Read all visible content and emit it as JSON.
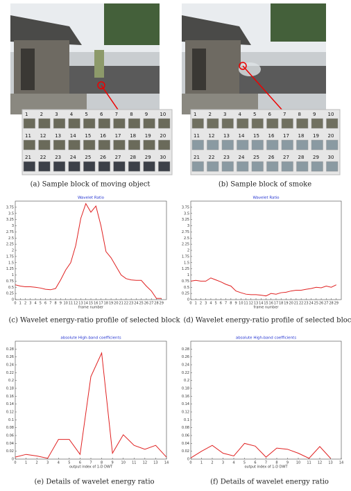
{
  "photos": [
    {
      "caption": "(a) Sample block of moving object",
      "blocks": [
        1,
        2,
        3,
        4,
        5,
        6,
        7,
        8,
        9,
        10,
        11,
        12,
        13,
        14,
        15,
        16,
        17,
        18,
        19,
        20,
        21,
        22,
        23,
        24,
        25,
        26,
        27,
        28,
        29,
        30
      ]
    },
    {
      "caption": "(b) Sample block of smoke",
      "blocks": [
        1,
        2,
        3,
        4,
        5,
        6,
        7,
        8,
        9,
        10,
        11,
        12,
        13,
        14,
        15,
        16,
        17,
        18,
        19,
        20,
        21,
        22,
        23,
        24,
        25,
        26,
        27,
        28,
        29,
        30
      ]
    }
  ],
  "chart_data": [
    {
      "type": "line",
      "title": "Wavelet Ratio",
      "xlabel": "frame number",
      "caption": "(c) Wavelet energy-ratio profile of selected block",
      "color": "#e02020",
      "x": [
        0,
        1,
        2,
        3,
        4,
        5,
        6,
        7,
        8,
        9,
        10,
        11,
        12,
        13,
        14,
        15,
        16,
        17,
        18,
        19,
        20,
        21,
        22,
        23,
        24,
        25,
        26,
        27,
        28,
        29
      ],
      "values": [
        0.6,
        0.55,
        0.52,
        0.52,
        0.5,
        0.47,
        0.42,
        0.4,
        0.45,
        0.8,
        1.2,
        1.5,
        2.2,
        3.3,
        3.9,
        3.55,
        3.8,
        3.0,
        1.95,
        1.7,
        1.35,
        1.0,
        0.85,
        0.8,
        0.78,
        0.78,
        0.55,
        0.35,
        0.05,
        0.05
      ],
      "xlim": [
        0,
        30
      ],
      "xticks": [
        0,
        1,
        2,
        3,
        4,
        5,
        6,
        7,
        8,
        9,
        10,
        11,
        12,
        13,
        14,
        15,
        16,
        17,
        18,
        19,
        20,
        21,
        22,
        23,
        24,
        25,
        26,
        27,
        28,
        29
      ],
      "ylim": [
        0,
        4
      ],
      "yticks": [
        0,
        0.25,
        0.5,
        0.75,
        1,
        1.25,
        1.5,
        1.75,
        2,
        2.25,
        2.5,
        2.75,
        3,
        3.25,
        3.5,
        3.75
      ]
    },
    {
      "type": "line",
      "title": "Wavelet Ratio",
      "xlabel": "frame number",
      "caption": "(d) Wavelet energy-ratio profile of selected block",
      "color": "#e02020",
      "x": [
        0,
        1,
        2,
        3,
        4,
        5,
        6,
        7,
        8,
        9,
        10,
        11,
        12,
        13,
        14,
        15,
        16,
        17,
        18,
        19,
        20,
        21,
        22,
        23,
        24,
        25,
        26,
        27,
        28,
        29
      ],
      "values": [
        0.75,
        0.78,
        0.75,
        0.75,
        0.88,
        0.8,
        0.72,
        0.62,
        0.55,
        0.35,
        0.28,
        0.22,
        0.2,
        0.2,
        0.18,
        0.15,
        0.25,
        0.22,
        0.28,
        0.3,
        0.35,
        0.38,
        0.38,
        0.42,
        0.45,
        0.5,
        0.48,
        0.55,
        0.5,
        0.6
      ],
      "xlim": [
        0,
        30
      ],
      "xticks": [
        0,
        1,
        2,
        3,
        4,
        5,
        6,
        7,
        8,
        9,
        10,
        11,
        12,
        13,
        14,
        15,
        16,
        17,
        18,
        19,
        20,
        21,
        22,
        23,
        24,
        25,
        26,
        27,
        28,
        29
      ],
      "ylim": [
        0,
        4
      ],
      "yticks": [
        0,
        0.25,
        0.5,
        0.75,
        1,
        1.25,
        1.5,
        1.75,
        2,
        2.25,
        2.5,
        2.75,
        3,
        3.25,
        3.5,
        3.75
      ]
    },
    {
      "type": "line",
      "title": "absolute High-band coefficients",
      "xlabel": "output index of 1-D DWT",
      "caption": "(e) Details of wavelet energy ratio",
      "color": "#e02020",
      "x": [
        0,
        1,
        2,
        3,
        4,
        5,
        6,
        7,
        8,
        9,
        10,
        11,
        12,
        13,
        14
      ],
      "values": [
        0.005,
        0.012,
        0.008,
        0.002,
        0.05,
        0.05,
        0.012,
        0.21,
        0.27,
        0.015,
        0.062,
        0.035,
        0.025,
        0.035,
        0.005
      ],
      "xlim": [
        0,
        14
      ],
      "xticks": [
        0,
        1,
        2,
        3,
        4,
        5,
        6,
        7,
        8,
        9,
        10,
        11,
        12,
        13,
        14
      ],
      "ylim": [
        0,
        0.3
      ],
      "yticks": [
        0,
        0.02,
        0.04,
        0.06,
        0.08,
        0.1,
        0.12,
        0.14,
        0.16,
        0.18,
        0.2,
        0.22,
        0.24,
        0.26,
        0.28
      ]
    },
    {
      "type": "line",
      "title": "absolute High-band coefficients",
      "xlabel": "output index of 1-D DWT",
      "caption": "(f) Details of wavelet energy ratio",
      "color": "#e02020",
      "x": [
        0,
        1,
        2,
        3,
        4,
        5,
        6,
        7,
        8,
        9,
        10,
        11,
        12,
        13
      ],
      "values": [
        0.003,
        0.02,
        0.035,
        0.015,
        0.008,
        0.04,
        0.033,
        0.005,
        0.028,
        0.025,
        0.015,
        0.002,
        0.032,
        0.002
      ],
      "xlim": [
        0,
        14
      ],
      "xticks": [
        0,
        1,
        2,
        3,
        4,
        5,
        6,
        7,
        8,
        9,
        10,
        11,
        12,
        13,
        14
      ],
      "ylim": [
        0,
        0.3
      ],
      "yticks": [
        0,
        0.02,
        0.04,
        0.06,
        0.08,
        0.1,
        0.12,
        0.14,
        0.16,
        0.18,
        0.2,
        0.22,
        0.24,
        0.26,
        0.28
      ]
    }
  ]
}
